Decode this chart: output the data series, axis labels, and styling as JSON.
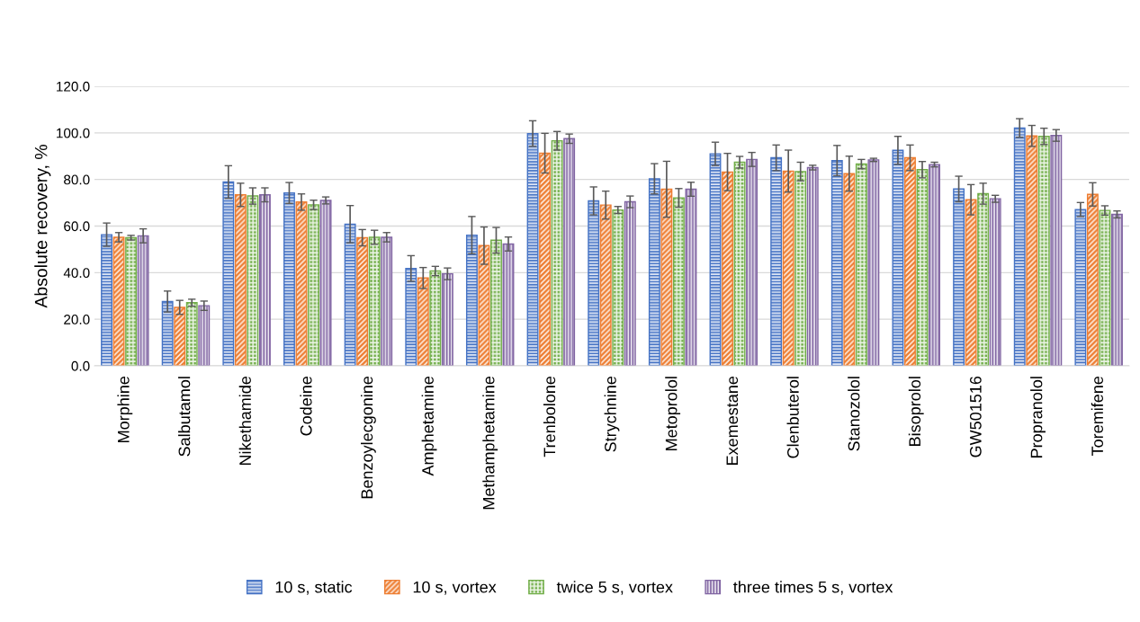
{
  "chart_data": {
    "type": "bar",
    "ylabel": "Absolute recovery, %",
    "categories": [
      "Morphine",
      "Salbutamol",
      "Nikethamide",
      "Codeine",
      "Benzoylecgonine",
      "Amphetamine",
      "Methamphetamine",
      "Trenbolone",
      "Strychnine",
      "Metoprolol",
      "Exemestane",
      "Clenbuterol",
      "Stanozolol",
      "Bisoprolol",
      "GW501516",
      "Propranolol",
      "Toremifene"
    ],
    "series": [
      {
        "name": "10 s, static",
        "color": "#4472c4",
        "values": [
          56.3,
          27.6,
          78.9,
          74.2,
          60.8,
          41.8,
          56.1,
          99.7,
          70.8,
          80.3,
          91.0,
          89.3,
          88.1,
          92.5,
          75.9,
          102.1,
          67.1
        ],
        "errors": [
          5,
          4.5,
          7,
          4.5,
          8,
          5.5,
          8,
          5.5,
          6,
          6.5,
          5,
          5.5,
          6.5,
          6,
          5.5,
          4,
          3
        ]
      },
      {
        "name": "10 s, vortex",
        "color": "#ed7d31",
        "values": [
          55.2,
          25.1,
          73.4,
          70.3,
          55.0,
          37.7,
          51.6,
          91.3,
          69.0,
          75.8,
          83.2,
          83.6,
          82.5,
          89.3,
          71.3,
          98.7,
          73.6
        ],
        "errors": [
          2,
          3,
          5,
          3.5,
          3.5,
          4.5,
          8,
          8.5,
          6,
          12,
          8,
          9,
          7.5,
          5.5,
          6.5,
          4.5,
          5
        ]
      },
      {
        "name": "twice 5 s, vortex",
        "color": "#70ad47",
        "values": [
          55.0,
          27.1,
          72.9,
          69.1,
          55.2,
          40.7,
          53.9,
          96.6,
          66.9,
          72.1,
          87.4,
          83.4,
          86.6,
          84.2,
          73.9,
          98.5,
          66.7
        ],
        "errors": [
          1,
          1.5,
          3.5,
          2,
          3,
          2,
          5.5,
          4,
          1.5,
          4,
          2.5,
          4,
          2,
          3.5,
          4.5,
          3.5,
          2
        ]
      },
      {
        "name": "three times 5 s, vortex",
        "color": "#8064a2",
        "values": [
          55.8,
          25.8,
          73.4,
          71.0,
          55.2,
          39.5,
          52.3,
          97.5,
          70.4,
          75.8,
          88.6,
          85.1,
          88.4,
          86.4,
          71.7,
          98.9,
          65.0
        ],
        "errors": [
          3,
          2,
          3,
          1.5,
          2,
          2.5,
          3,
          2,
          2.5,
          3,
          3,
          1,
          0.7,
          1,
          1.5,
          2.5,
          1.5
        ]
      }
    ],
    "ylim": [
      0,
      120
    ],
    "yticks": [
      {
        "value": 0,
        "label": "0.0"
      },
      {
        "value": 20,
        "label": "20.0"
      },
      {
        "value": 40,
        "label": "40.0"
      },
      {
        "value": 60,
        "label": "60.0"
      },
      {
        "value": 80,
        "label": "80.0"
      },
      {
        "value": 100,
        "label": "100.0"
      },
      {
        "value": 120,
        "label": "120.0"
      }
    ],
    "grid": "y",
    "legend": "bottom"
  }
}
